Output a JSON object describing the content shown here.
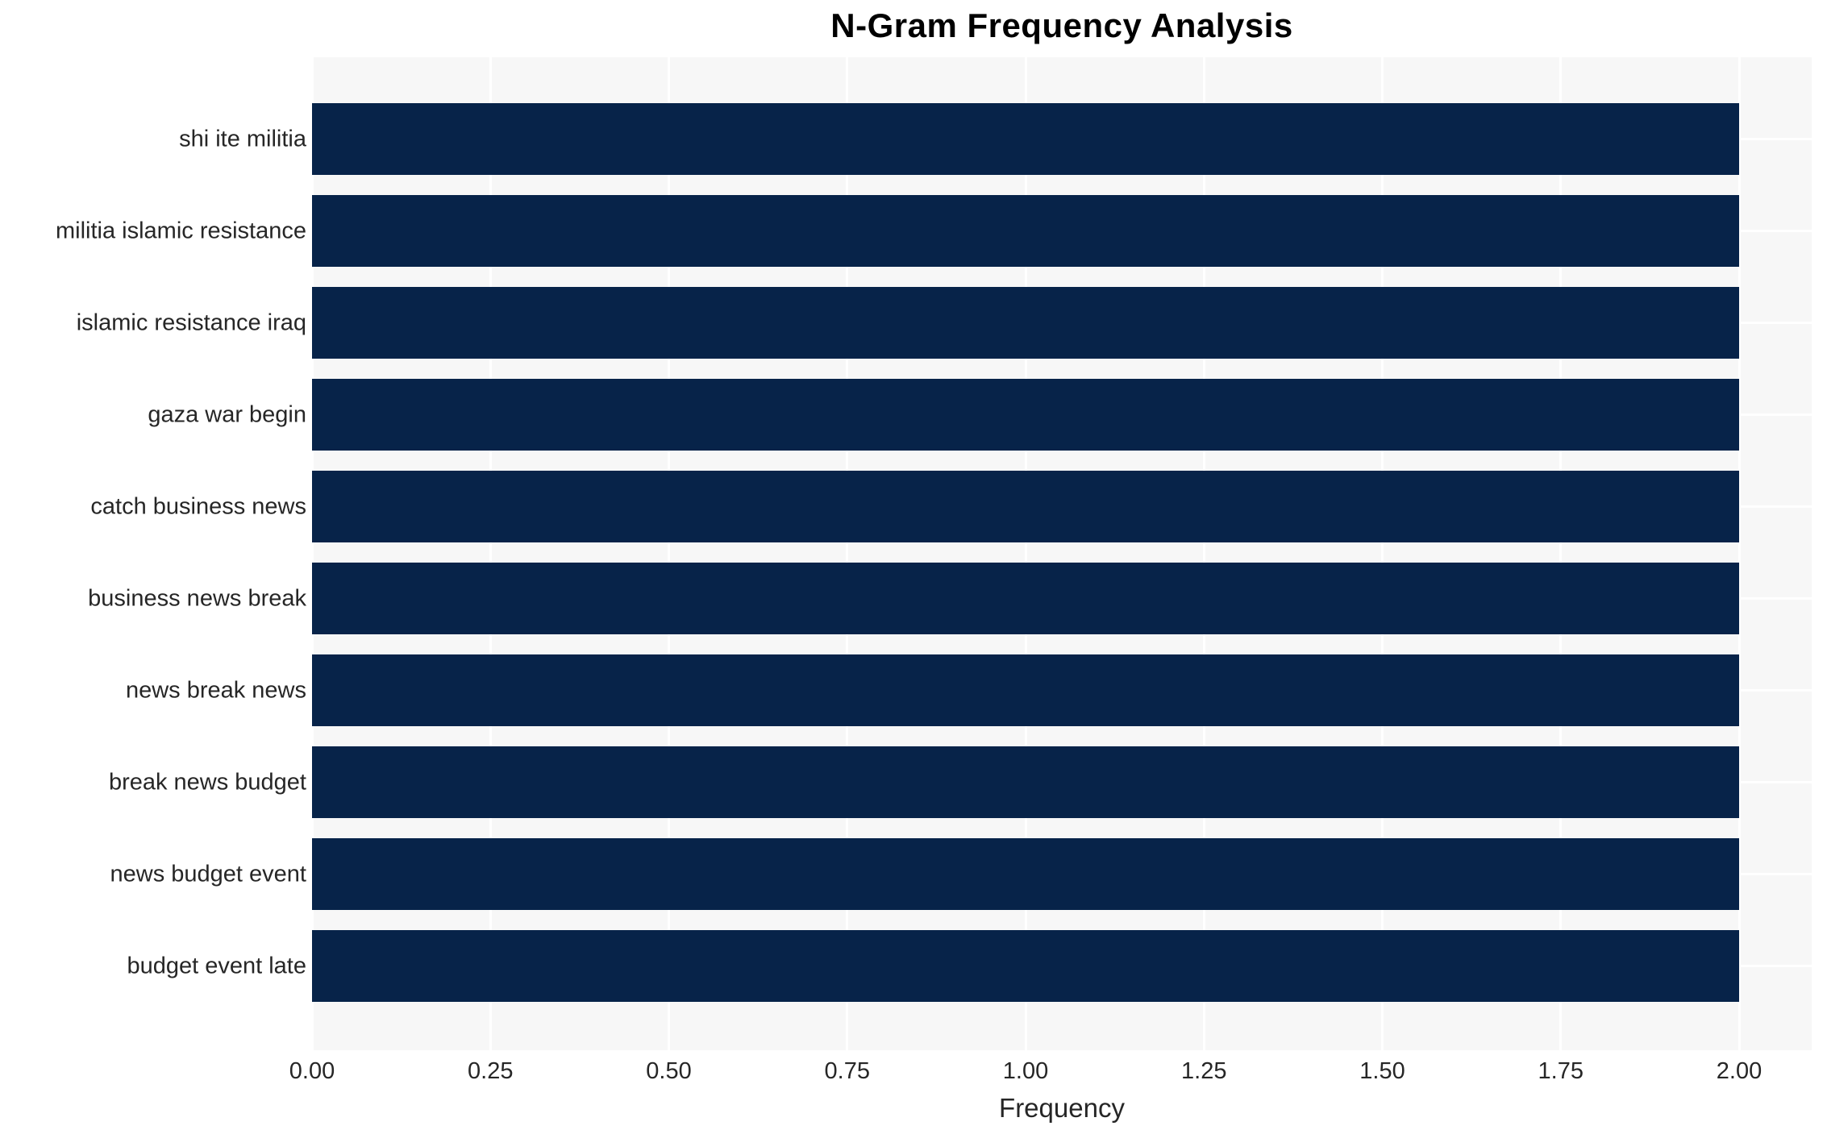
{
  "chart_data": {
    "type": "bar",
    "orientation": "horizontal",
    "title": "N-Gram Frequency Analysis",
    "xlabel": "Frequency",
    "ylabel": "",
    "categories": [
      "shi ite militia",
      "militia islamic resistance",
      "islamic resistance iraq",
      "gaza war begin",
      "catch business news",
      "business news break",
      "news break news",
      "break news budget",
      "news budget event",
      "budget event late"
    ],
    "values": [
      2,
      2,
      2,
      2,
      2,
      2,
      2,
      2,
      2,
      2
    ],
    "x_tick_labels": [
      "0.00",
      "0.25",
      "0.50",
      "0.75",
      "1.00",
      "1.25",
      "1.50",
      "1.75",
      "2.00"
    ],
    "xlim": [
      0,
      2.1
    ],
    "grid": true,
    "legend_position": "none",
    "colors": {
      "bar": "#072349",
      "plot_background": "#f7f7f7",
      "grid": "#ffffff",
      "text": "#262626",
      "title": "#000000"
    }
  }
}
